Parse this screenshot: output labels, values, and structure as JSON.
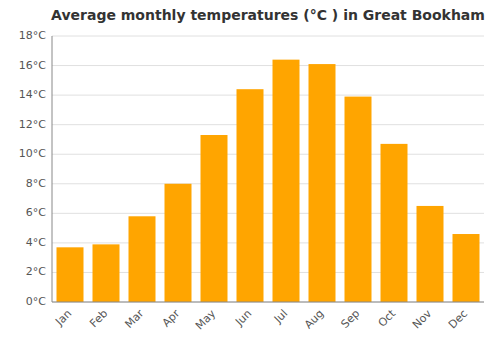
{
  "chart_data": {
    "type": "bar",
    "title": "Average monthly temperatures (°C ) in Great Bookham",
    "categories": [
      "Jan",
      "Feb",
      "Mar",
      "Apr",
      "May",
      "Jun",
      "Jul",
      "Aug",
      "Sep",
      "Oct",
      "Nov",
      "Dec"
    ],
    "values": [
      3.7,
      3.9,
      5.8,
      8.0,
      11.3,
      14.4,
      16.4,
      16.1,
      13.9,
      10.7,
      6.5,
      4.6
    ],
    "color": "#FFA500",
    "ylim": [
      0,
      18
    ],
    "yticks": [
      {
        "value": 0,
        "label": "0°C"
      },
      {
        "value": 2,
        "label": "2°C"
      },
      {
        "value": 4,
        "label": "4°C"
      },
      {
        "value": 6,
        "label": "6°C"
      },
      {
        "value": 8,
        "label": "8°C"
      },
      {
        "value": 10,
        "label": "10°C"
      },
      {
        "value": 12,
        "label": "12°C"
      },
      {
        "value": 14,
        "label": "14°C"
      },
      {
        "value": 16,
        "label": "16°C"
      },
      {
        "value": 18,
        "label": "18°C"
      }
    ],
    "grid": true
  }
}
